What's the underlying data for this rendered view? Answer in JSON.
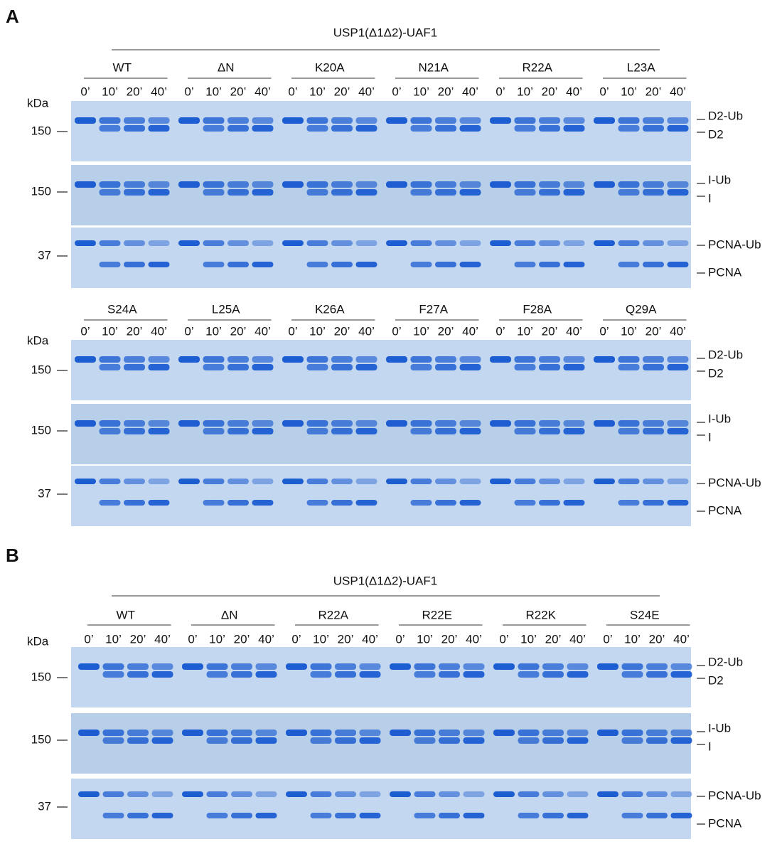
{
  "panels": [
    {
      "label": "A",
      "blocks": [
        {
          "title": "USP1(Δ1Δ2)-UAF1",
          "groups": [
            "WT",
            "ΔN",
            "K20A",
            "N21A",
            "R22A",
            "L23A"
          ],
          "timepoints": [
            "0’",
            "10’",
            "20’",
            "40’"
          ],
          "kda_label": "kDa",
          "gels": [
            {
              "marker": "150",
              "labels": [
                "D2-Ub",
                "D2"
              ]
            },
            {
              "marker": "150",
              "labels": [
                "I-Ub",
                "I"
              ]
            },
            {
              "marker": "37",
              "labels": [
                "PCNA-Ub",
                "PCNA"
              ]
            }
          ]
        },
        {
          "groups": [
            "S24A",
            "L25A",
            "K26A",
            "F27A",
            "F28A",
            "Q29A"
          ],
          "timepoints": [
            "0’",
            "10’",
            "20’",
            "40’"
          ],
          "kda_label": "kDa",
          "gels": [
            {
              "marker": "150",
              "labels": [
                "D2-Ub",
                "D2"
              ]
            },
            {
              "marker": "150",
              "labels": [
                "I-Ub",
                "I"
              ]
            },
            {
              "marker": "37",
              "labels": [
                "PCNA-Ub",
                "PCNA"
              ]
            }
          ]
        }
      ]
    },
    {
      "label": "B",
      "blocks": [
        {
          "title": "USP1(Δ1Δ2)-UAF1",
          "groups": [
            "WT",
            "ΔN",
            "R22A",
            "R22E",
            "R22K",
            "S24E"
          ],
          "timepoints": [
            "0’",
            "10’",
            "20’",
            "40’"
          ],
          "kda_label": "kDa",
          "gels": [
            {
              "marker": "150",
              "labels": [
                "D2-Ub",
                "D2"
              ]
            },
            {
              "marker": "150",
              "labels": [
                "I-Ub",
                "I"
              ]
            },
            {
              "marker": "37",
              "labels": [
                "PCNA-Ub",
                "PCNA"
              ]
            }
          ]
        }
      ]
    }
  ]
}
